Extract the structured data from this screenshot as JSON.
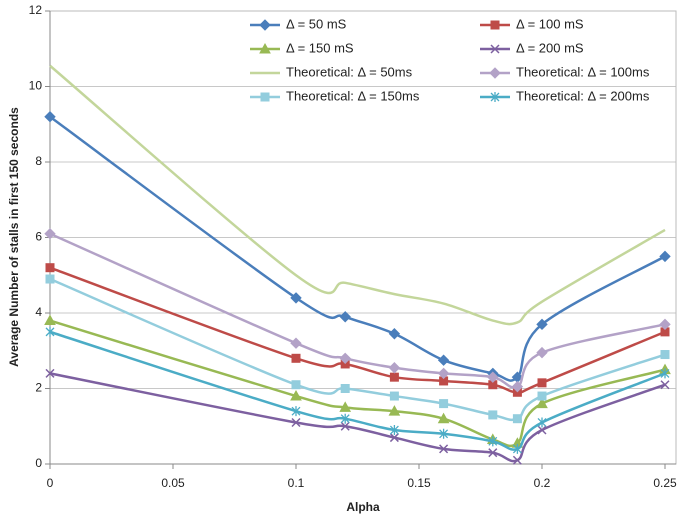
{
  "chart_data": {
    "type": "line",
    "xlabel": "Alpha",
    "ylabel": "Average Number of stalls in first 150 seconds",
    "x": [
      0,
      0.1,
      0.12,
      0.14,
      0.16,
      0.18,
      0.19,
      0.2,
      0.25
    ],
    "xlim": [
      0,
      0.25
    ],
    "xticks": [
      0,
      0.05,
      0.1,
      0.15,
      0.2,
      0.25
    ],
    "ylim": [
      0,
      12
    ],
    "yticks": [
      0,
      2,
      4,
      6,
      8,
      10,
      12
    ],
    "grid": true,
    "smooth": true,
    "series": [
      {
        "name": "Δ = 50 mS",
        "color": "#4a7ebb",
        "marker": "diamond",
        "values": [
          9.2,
          4.4,
          3.9,
          3.45,
          2.75,
          2.4,
          2.3,
          3.7,
          5.5
        ]
      },
      {
        "name": "Δ = 100 mS",
        "color": "#be4b48",
        "marker": "square",
        "values": [
          5.2,
          2.8,
          2.65,
          2.3,
          2.2,
          2.1,
          1.9,
          2.15,
          3.5
        ]
      },
      {
        "name": "Δ = 150 mS",
        "color": "#98b954",
        "marker": "triangle",
        "values": [
          3.8,
          1.8,
          1.5,
          1.4,
          1.2,
          0.65,
          0.55,
          1.6,
          2.5
        ]
      },
      {
        "name": "Δ = 200 mS",
        "color": "#7d60a0",
        "marker": "x",
        "values": [
          2.4,
          1.1,
          1.0,
          0.7,
          0.4,
          0.3,
          0.1,
          0.9,
          2.1
        ]
      },
      {
        "name": "Theoretical: Δ = 50ms",
        "color": "#c3d69b",
        "marker": "none",
        "values": [
          10.55,
          5.0,
          4.8,
          4.5,
          4.25,
          3.8,
          3.75,
          4.3,
          6.2
        ]
      },
      {
        "name": "Theoretical: Δ = 100ms",
        "color": "#b3a2c7",
        "marker": "diamond",
        "values": [
          6.1,
          3.2,
          2.8,
          2.55,
          2.4,
          2.3,
          2.05,
          2.95,
          3.7
        ]
      },
      {
        "name": "Theoretical: Δ = 150ms",
        "color": "#93cddd",
        "marker": "square",
        "values": [
          4.9,
          2.1,
          2.0,
          1.8,
          1.6,
          1.3,
          1.2,
          1.8,
          2.9
        ]
      },
      {
        "name": "Theoretical: Δ = 200ms",
        "color": "#4bacc6",
        "marker": "star",
        "values": [
          3.5,
          1.4,
          1.2,
          0.9,
          0.8,
          0.6,
          0.4,
          1.1,
          2.4
        ]
      }
    ]
  }
}
